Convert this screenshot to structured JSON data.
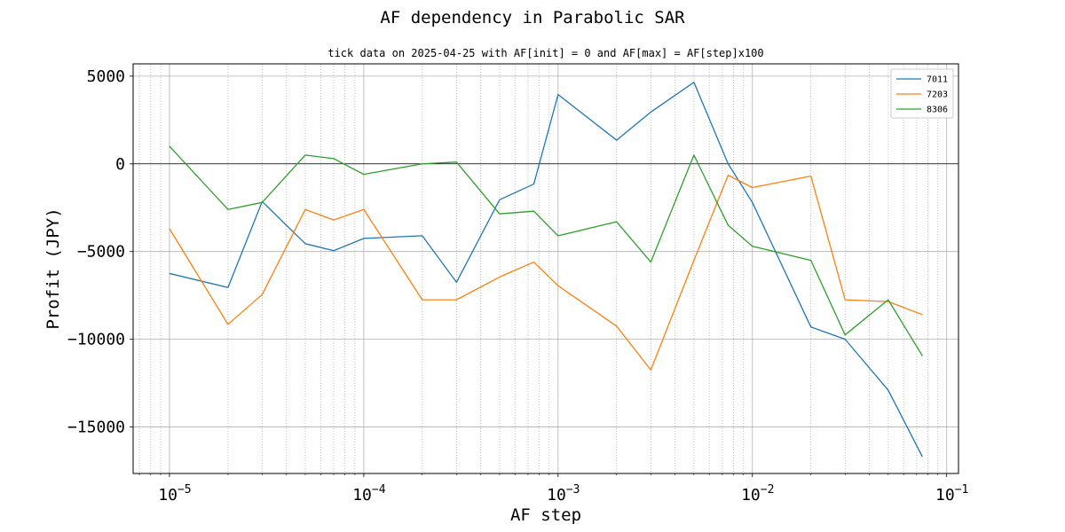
{
  "chart_data": {
    "type": "line",
    "title": "AF dependency in Parabolic SAR",
    "subtitle": "tick data on 2025-04-25 with AF[init] = 0 and AF[max] = AF[step]x100",
    "xlabel": "AF step",
    "ylabel": "Profit (JPY)",
    "xscale": "log",
    "xlim": [
      6.5e-06,
      0.115
    ],
    "ylim": [
      -17650,
      5700
    ],
    "grid": true,
    "legend_position": "top-right",
    "x": [
      1e-05,
      2e-05,
      3e-05,
      5e-05,
      7e-05,
      0.0001,
      0.0002,
      0.0003,
      0.0005,
      0.00075,
      0.001,
      0.002,
      0.003,
      0.005,
      0.0075,
      0.01,
      0.02,
      0.03,
      0.05,
      0.075
    ],
    "series": [
      {
        "name": "7011",
        "color": "#1f77b4",
        "values": [
          -6250,
          -7050,
          -2150,
          -4550,
          -4950,
          -4250,
          -4100,
          -6750,
          -2050,
          -1150,
          3950,
          1350,
          2950,
          4650,
          0,
          -2200,
          -9300,
          -10000,
          -12900,
          -16700
        ]
      },
      {
        "name": "7203",
        "color": "#ff7f0e",
        "values": [
          -3700,
          -9150,
          -7450,
          -2600,
          -3200,
          -2600,
          -7750,
          -7750,
          -6450,
          -5600,
          -6950,
          -9250,
          -11750,
          -5500,
          -650,
          -1350,
          -700,
          -7750,
          -7850,
          -8600
        ]
      },
      {
        "name": "8306",
        "color": "#2ca02c",
        "values": [
          1000,
          -2600,
          -2200,
          500,
          300,
          -600,
          0,
          100,
          -2850,
          -2700,
          -4100,
          -3300,
          -5600,
          500,
          -3500,
          -4700,
          -5500,
          -9750,
          -7750,
          -10950
        ]
      }
    ],
    "yticks": [
      5000,
      0,
      -5000,
      -10000,
      -15000
    ],
    "ytick_labels": [
      "5000",
      "0",
      "−5000",
      "−10000",
      "−15000"
    ],
    "xticks": [
      1e-05,
      0.0001,
      0.001,
      0.01,
      0.1
    ],
    "xtick_labels": [
      {
        "base": "10",
        "exp": "−5"
      },
      {
        "base": "10",
        "exp": "−4"
      },
      {
        "base": "10",
        "exp": "−3"
      },
      {
        "base": "10",
        "exp": "−2"
      },
      {
        "base": "10",
        "exp": "−1"
      }
    ]
  }
}
